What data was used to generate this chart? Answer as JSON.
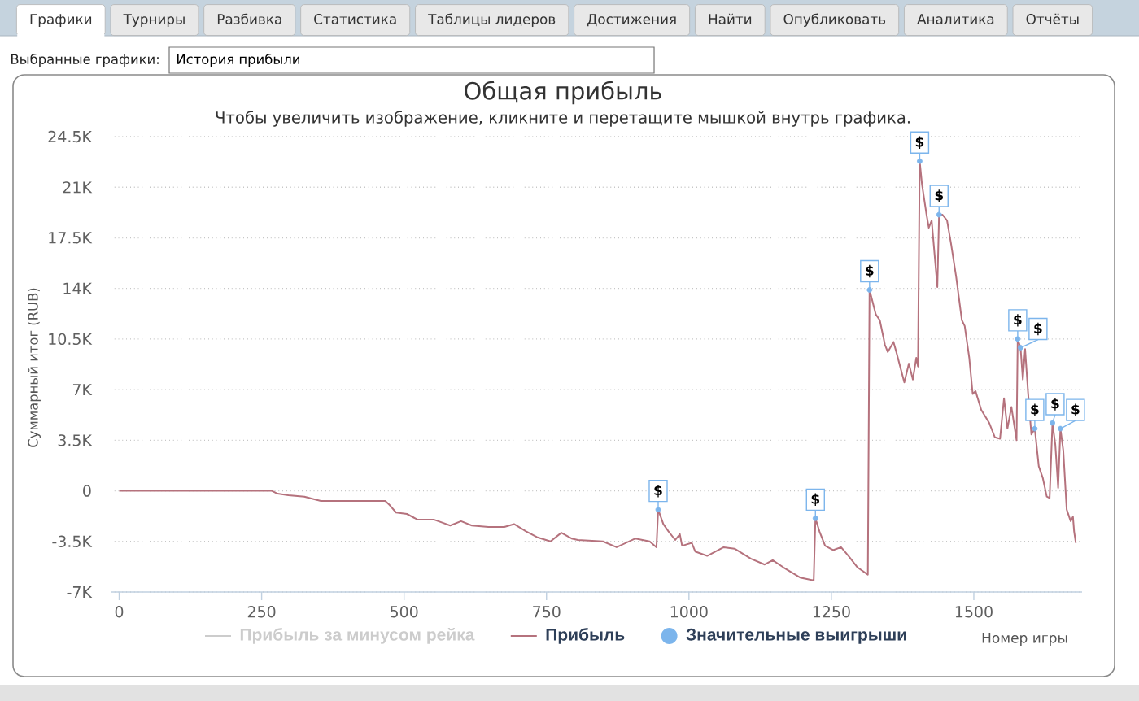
{
  "chart_data": {
    "type": "line",
    "title": "Общая прибыль",
    "subtitle": "Чтобы увеличить изображение, кликните и перетащите мышкой внутрь графика.",
    "xlabel": "Номер игры",
    "ylabel": "Суммарный итог (RUB)",
    "annotations": [
      "Графики",
      "Турниры",
      "Разбивка",
      "Статистика",
      "Таблицы лидеров",
      "Достижения",
      "Найти",
      "Опубликовать",
      "Аналитика",
      "Отчёты",
      "Выбранные графики:",
      "История прибыли"
    ],
    "xlim": [
      -15,
      1690
    ],
    "xticks": [
      0,
      250,
      500,
      750,
      1000,
      1250,
      1500
    ],
    "ylim": [
      -7000,
      24500
    ],
    "yticks": [
      {
        "value": -7000,
        "label": "-7K"
      },
      {
        "value": -3500,
        "label": "-3.5K"
      },
      0,
      {
        "value": 3500,
        "label": "3.5K"
      },
      {
        "value": 7000,
        "label": "7K"
      },
      {
        "value": 10500,
        "label": "10.5K"
      },
      {
        "value": 14000,
        "label": "14K"
      },
      {
        "value": 17500,
        "label": "17.5K"
      },
      {
        "value": 21000,
        "label": "21K"
      },
      {
        "value": 24500,
        "label": "24.5K"
      }
    ],
    "grid": "y",
    "legend": "bottom",
    "series": [
      {
        "name": "Прибыль за минусом рейка",
        "color": "#cccccc"
      },
      {
        "name": "Прибыль",
        "color": "#b5727d",
        "line_style": "solid",
        "x": [
          0,
          268,
          278,
          297,
          325,
          344,
          354,
          467,
          475,
          486,
          505,
          524,
          553,
          567,
          581,
          600,
          619,
          648,
          676,
          693,
          714,
          733,
          757,
          776,
          794,
          805,
          849,
          873,
          906,
          931,
          943,
          946,
          955,
          964,
          976,
          984,
          988,
          1005,
          1011,
          1032,
          1061,
          1080,
          1109,
          1133,
          1147,
          1166,
          1195,
          1219,
          1222,
          1229,
          1239,
          1253,
          1267,
          1280,
          1296,
          1314,
          1317,
          1328,
          1335,
          1344,
          1349,
          1359,
          1364,
          1378,
          1386,
          1393,
          1399,
          1402,
          1405,
          1409,
          1417,
          1421,
          1426,
          1436,
          1439,
          1445,
          1453,
          1460,
          1469,
          1479,
          1484,
          1492,
          1498,
          1503,
          1513,
          1527,
          1537,
          1546,
          1553,
          1559,
          1566,
          1575,
          1577,
          1582,
          1586,
          1590,
          1595,
          1601,
          1607,
          1614,
          1621,
          1628,
          1633,
          1638,
          1643,
          1648,
          1652,
          1657,
          1663,
          1670,
          1674,
          1676,
          1679
        ],
        "values": [
          0,
          0,
          -200,
          -300,
          -400,
          -600,
          -700,
          -700,
          -1000,
          -1500,
          -1600,
          -2000,
          -2000,
          -2200,
          -2400,
          -2100,
          -2400,
          -2500,
          -2500,
          -2300,
          -2800,
          -3200,
          -3500,
          -2900,
          -3300,
          -3400,
          -3500,
          -3900,
          -3300,
          -3500,
          -3900,
          -1300,
          -2300,
          -2800,
          -3400,
          -3000,
          -3800,
          -3600,
          -4200,
          -4500,
          -3900,
          -4000,
          -4700,
          -5100,
          -4800,
          -5300,
          -6000,
          -6200,
          -1900,
          -2800,
          -3800,
          -4100,
          -3900,
          -4500,
          -5300,
          -5800,
          13900,
          12200,
          11800,
          10100,
          9600,
          10300,
          9600,
          7500,
          8800,
          7700,
          9200,
          8600,
          22800,
          21200,
          19100,
          18200,
          18700,
          14100,
          19100,
          19100,
          18700,
          17100,
          14800,
          11800,
          11400,
          9200,
          6700,
          6900,
          5600,
          4700,
          3700,
          3600,
          6400,
          4300,
          5800,
          3500,
          10500,
          9900,
          7700,
          9800,
          6900,
          3900,
          4300,
          1700,
          900,
          -400,
          -500,
          4700,
          3200,
          200,
          4300,
          2800,
          -1300,
          -2100,
          -1800,
          -2800,
          -3600
        ]
      },
      {
        "name": "Значительные выигрыши",
        "type": "scatter",
        "color": "#7cb5ec",
        "marker": "circle",
        "x": [
          946,
          1222,
          1317,
          1405,
          1439,
          1577,
          1582,
          1607,
          1638,
          1652
        ],
        "values": [
          -1300,
          -1900,
          13900,
          22800,
          19100,
          10500,
          9900,
          4300,
          4700,
          4300
        ],
        "value_labels": [
          "$",
          "$",
          "$",
          "$",
          "$",
          "$",
          "$",
          "$",
          "$",
          "$"
        ]
      }
    ]
  }
}
